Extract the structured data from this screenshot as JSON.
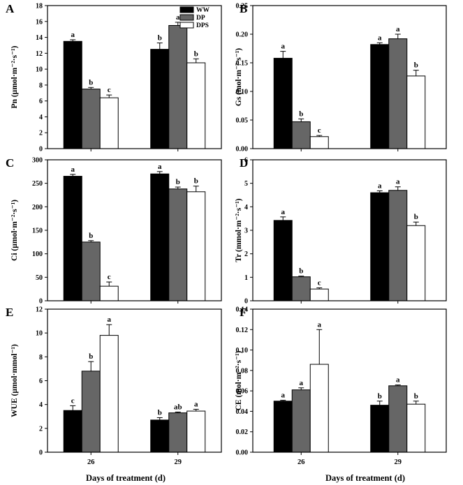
{
  "figure": {
    "xlabel": "Days of treatment (d)",
    "categories": [
      "26",
      "29"
    ],
    "legend": {
      "placement": "top-right of panel A",
      "entries": [
        {
          "name": "WW",
          "color": "#000000"
        },
        {
          "name": "DP",
          "color": "#666666"
        },
        {
          "name": "DPS",
          "color": "#ffffff"
        }
      ]
    }
  },
  "chart_data": [
    {
      "panel": "A",
      "type": "bar",
      "ylabel": "Pn (µmol·m⁻²·s⁻¹)",
      "categories": [
        "26",
        "29"
      ],
      "ylim": [
        0,
        18
      ],
      "yticks": [
        "0",
        "2",
        "4",
        "6",
        "8",
        "10",
        "12",
        "14",
        "16",
        "18"
      ],
      "series": [
        {
          "name": "WW",
          "values": [
            13.5,
            12.5
          ],
          "errors": [
            0.2,
            0.8
          ],
          "letters": [
            "a",
            "b"
          ]
        },
        {
          "name": "DP",
          "values": [
            7.5,
            15.5
          ],
          "errors": [
            0.2,
            0.4
          ],
          "letters": [
            "b",
            "a"
          ]
        },
        {
          "name": "DPS",
          "values": [
            6.4,
            10.8
          ],
          "errors": [
            0.35,
            0.5
          ],
          "letters": [
            "c",
            "b"
          ]
        }
      ]
    },
    {
      "panel": "B",
      "type": "bar",
      "ylabel": "Gs (mol·m⁻²·s⁻¹)",
      "categories": [
        "26",
        "29"
      ],
      "ylim": [
        0,
        0.25
      ],
      "yticks": [
        "0.00",
        "0.05",
        "0.10",
        "0.15",
        "0.20",
        "0.25"
      ],
      "series": [
        {
          "name": "WW",
          "values": [
            0.158,
            0.182
          ],
          "errors": [
            0.012,
            0.003
          ],
          "letters": [
            "a",
            "a"
          ]
        },
        {
          "name": "DP",
          "values": [
            0.047,
            0.192
          ],
          "errors": [
            0.005,
            0.008
          ],
          "letters": [
            "b",
            "a"
          ]
        },
        {
          "name": "DPS",
          "values": [
            0.021,
            0.127
          ],
          "errors": [
            0.002,
            0.01
          ],
          "letters": [
            "c",
            "b"
          ]
        }
      ]
    },
    {
      "panel": "C",
      "type": "bar",
      "ylabel": "Ci (µmol·m⁻²·s⁻¹)",
      "categories": [
        "26",
        "29"
      ],
      "ylim": [
        0,
        300
      ],
      "yticks": [
        "0",
        "50",
        "100",
        "150",
        "200",
        "250",
        "300"
      ],
      "series": [
        {
          "name": "WW",
          "values": [
            265,
            270
          ],
          "errors": [
            4,
            5
          ],
          "letters": [
            "a",
            "a"
          ]
        },
        {
          "name": "DP",
          "values": [
            125,
            238
          ],
          "errors": [
            3,
            4
          ],
          "letters": [
            "b",
            "b"
          ]
        },
        {
          "name": "DPS",
          "values": [
            31,
            232
          ],
          "errors": [
            9,
            12
          ],
          "letters": [
            "c",
            "b"
          ]
        }
      ]
    },
    {
      "panel": "D",
      "type": "bar",
      "ylabel": "Tr (mmol·m⁻²·s⁻¹)",
      "categories": [
        "26",
        "29"
      ],
      "ylim": [
        0,
        6
      ],
      "yticks": [
        "0",
        "1",
        "2",
        "3",
        "4",
        "5",
        "6"
      ],
      "series": [
        {
          "name": "WW",
          "values": [
            3.42,
            4.6
          ],
          "errors": [
            0.15,
            0.08
          ],
          "letters": [
            "a",
            "a"
          ]
        },
        {
          "name": "DP",
          "values": [
            1.02,
            4.7
          ],
          "errors": [
            0.03,
            0.15
          ],
          "letters": [
            "b",
            "a"
          ]
        },
        {
          "name": "DPS",
          "values": [
            0.5,
            3.2
          ],
          "errors": [
            0.05,
            0.15
          ],
          "letters": [
            "c",
            "b"
          ]
        }
      ]
    },
    {
      "panel": "E",
      "type": "bar",
      "ylabel": "WUE (µmol·mmol⁻¹)",
      "categories": [
        "26",
        "29"
      ],
      "ylim": [
        0,
        12
      ],
      "yticks": [
        "0",
        "2",
        "4",
        "6",
        "8",
        "10",
        "12"
      ],
      "series": [
        {
          "name": "WW",
          "values": [
            3.5,
            2.7
          ],
          "errors": [
            0.4,
            0.2
          ],
          "letters": [
            "c",
            "b"
          ]
        },
        {
          "name": "DP",
          "values": [
            6.8,
            3.3
          ],
          "errors": [
            0.8,
            0.07
          ],
          "letters": [
            "b",
            "ab"
          ]
        },
        {
          "name": "DPS",
          "values": [
            9.8,
            3.45
          ],
          "errors": [
            0.9,
            0.15
          ],
          "letters": [
            "a",
            "a"
          ]
        }
      ]
    },
    {
      "panel": "F",
      "type": "bar",
      "ylabel": "CE (mol·m⁻²·s⁻¹)",
      "categories": [
        "26",
        "29"
      ],
      "ylim": [
        0,
        0.14
      ],
      "yticks": [
        "0.00",
        "0.02",
        "0.04",
        "0.06",
        "0.08",
        "0.10",
        "0.12",
        "0.14"
      ],
      "series": [
        {
          "name": "WW",
          "values": [
            0.05,
            0.046
          ],
          "errors": [
            0.0008,
            0.004
          ],
          "letters": [
            "a",
            "b"
          ]
        },
        {
          "name": "DP",
          "values": [
            0.061,
            0.065
          ],
          "errors": [
            0.002,
            0.0008
          ],
          "letters": [
            "a",
            "a"
          ]
        },
        {
          "name": "DPS",
          "values": [
            0.086,
            0.047
          ],
          "errors": [
            0.034,
            0.003
          ],
          "letters": [
            "a",
            "b"
          ]
        }
      ]
    }
  ]
}
